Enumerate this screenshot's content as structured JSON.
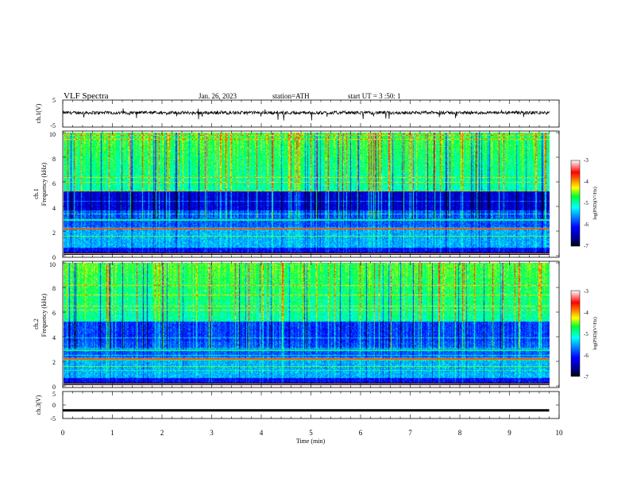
{
  "header": {
    "title": "VLF  Spectra",
    "date": "Jan. 26, 2023",
    "station": "station=ATH",
    "start": "start  UT  =   3  :50: 1"
  },
  "chart_data": [
    {
      "id": "ch1-waveform",
      "type": "line",
      "ylabel": "ch.1(V)",
      "ylim": [
        -5,
        5
      ],
      "yticks": [
        "5",
        "-5"
      ],
      "xlim": [
        0,
        10
      ],
      "baseline": 0.3,
      "noise_amplitude": 1.2,
      "color": "#000000"
    },
    {
      "id": "ch1-spectrogram",
      "type": "heatmap",
      "ylabel_top": "ch.1",
      "ylabel": "Frequency  (kHz)",
      "ylim": [
        0,
        10
      ],
      "yticks": [
        "0",
        "2",
        "4",
        "6",
        "8",
        "10"
      ],
      "xlim": [
        0,
        9.8
      ],
      "colorbar": {
        "label": "log(PSD)(V²/Hz)",
        "range": [
          -7,
          -3
        ],
        "ticks": [
          "-3",
          "-4",
          "-5",
          "-6",
          "-7"
        ]
      }
    },
    {
      "id": "ch2-spectrogram",
      "type": "heatmap",
      "ylabel_top": "ch.2",
      "ylabel": "Frequency  (kHz)",
      "ylim": [
        0,
        10
      ],
      "yticks": [
        "0",
        "2",
        "4",
        "6",
        "8",
        "10"
      ],
      "xlim": [
        0,
        9.8
      ],
      "colorbar": {
        "label": "log(PSD)(V²/Hz)",
        "range": [
          -7,
          -3
        ],
        "ticks": [
          "-3",
          "-4",
          "-5",
          "-6",
          "-7"
        ]
      }
    },
    {
      "id": "ch3-waveform",
      "type": "line",
      "ylabel": "ch.3(V)",
      "ylim": [
        -5,
        5
      ],
      "yticks": [
        "5",
        "0",
        "-5"
      ],
      "xlim": [
        0,
        10
      ],
      "baseline": -2.0,
      "color": "#000000"
    }
  ],
  "xaxis": {
    "label": "Time  (min)",
    "range": [
      0,
      10
    ],
    "ticks": [
      "0",
      "1",
      "2",
      "3",
      "4",
      "5",
      "6",
      "7",
      "8",
      "9",
      "10"
    ]
  }
}
